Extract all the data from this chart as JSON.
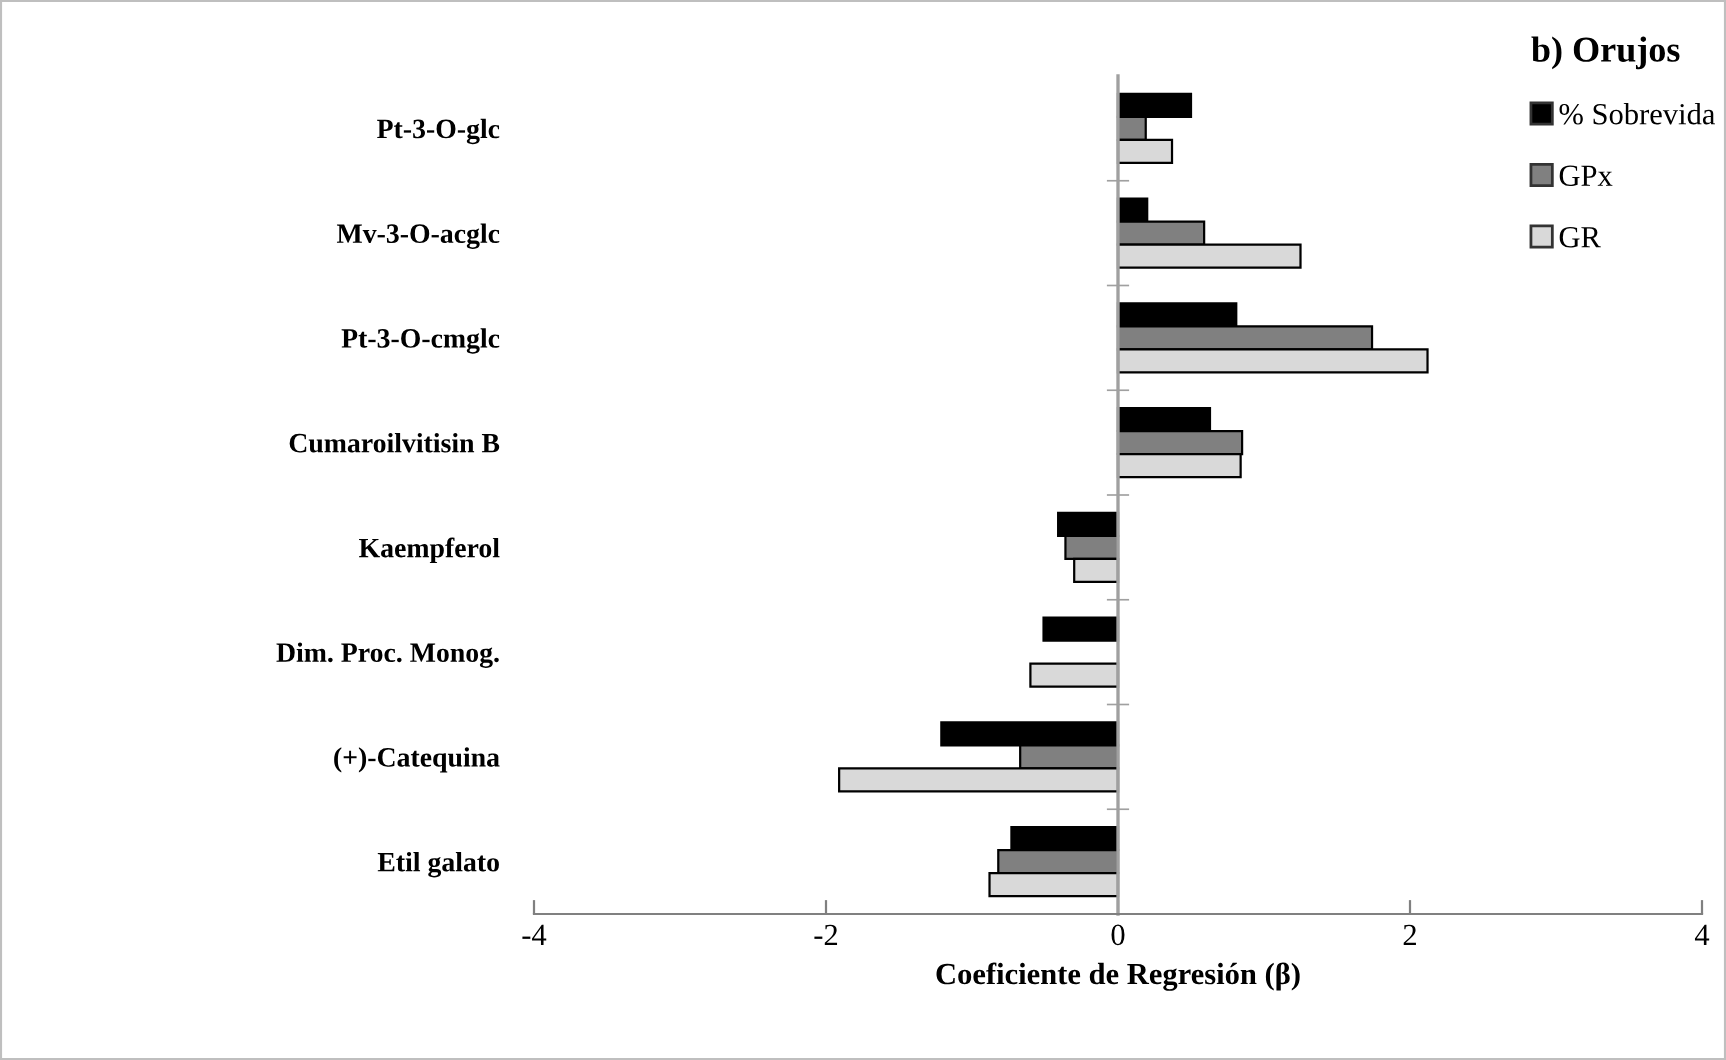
{
  "chart_data": {
    "type": "bar",
    "orientation": "horizontal",
    "xlabel": "Coeficiente de Regresión (β)",
    "legend_title": "b) Orujos",
    "categories": [
      "Pt-3-O-glc",
      "Mv-3-O-acglc",
      "Pt-3-O-cmglc",
      "Cumaroilvitisin B",
      "Kaempferol",
      "Dim. Proc. Monog.",
      "(+)-Catequina",
      "Etil galato"
    ],
    "series": [
      {
        "name": "% Sobrevida",
        "color": "#000000",
        "values": [
          0.5,
          0.2,
          0.81,
          0.63,
          -0.41,
          -0.51,
          -1.21,
          -0.73
        ]
      },
      {
        "name": "GPx",
        "color": "#808080",
        "values": [
          0.19,
          0.59,
          1.74,
          0.85,
          -0.36,
          null,
          -0.67,
          -0.82
        ]
      },
      {
        "name": "GR",
        "color": "#d9d9d9",
        "values": [
          0.37,
          1.25,
          2.12,
          0.84,
          -0.3,
          -0.6,
          -1.91,
          -0.88
        ]
      }
    ],
    "xlim": [
      -4,
      4
    ],
    "xticks": [
      -4,
      -2,
      0,
      2,
      4
    ],
    "legend": "top right"
  }
}
